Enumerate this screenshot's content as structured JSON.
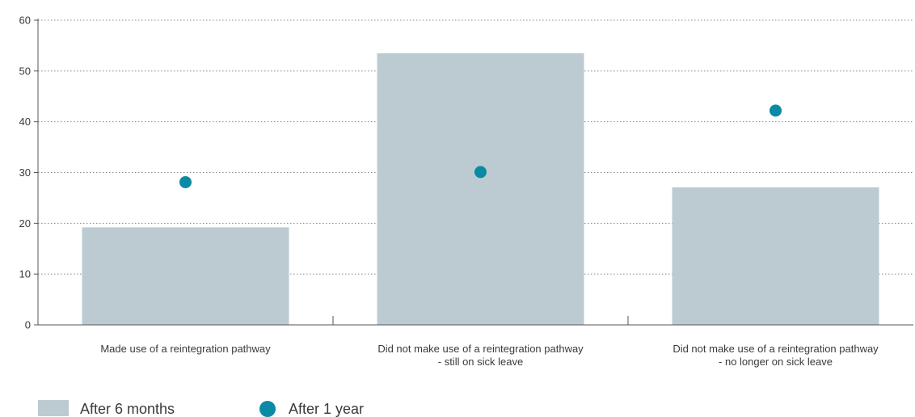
{
  "chart_data": {
    "type": "bar",
    "categories": [
      [
        "Made use of a reintegration pathway"
      ],
      [
        "Did not make use of a reintegration pathway",
        "- still on sick leave"
      ],
      [
        "Did not make use of a reintegration pathway",
        "- no longer on sick leave"
      ]
    ],
    "series": [
      {
        "name": "After 6 months",
        "kind": "bar",
        "values": [
          19.2,
          53.5,
          27.1
        ]
      },
      {
        "name": "After 1 year",
        "kind": "dot",
        "values": [
          28.1,
          30.1,
          42.2
        ]
      }
    ],
    "ylim": [
      0,
      60
    ],
    "yticks": [
      0,
      10,
      20,
      30,
      40,
      50,
      60
    ],
    "grid": true,
    "legend_position": "bottom-left",
    "colors": {
      "bar": "#bccbd2",
      "dot": "#0b8aa5",
      "grid": "#8a8a8a",
      "axis": "#555555"
    }
  }
}
